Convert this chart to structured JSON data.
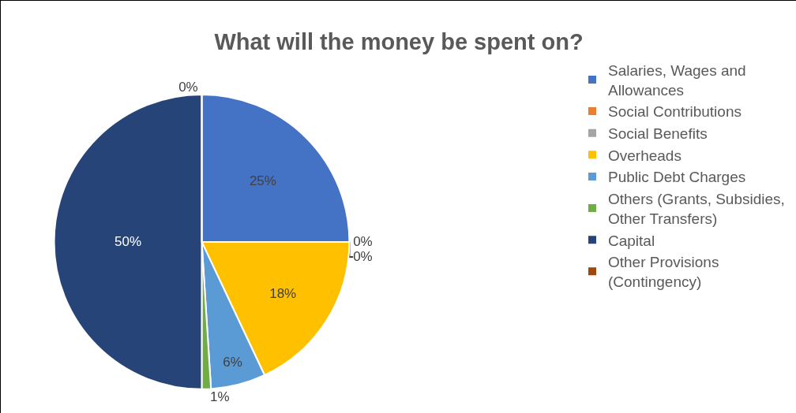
{
  "chart_data": {
    "type": "pie",
    "title": "What will the money be spent on?",
    "categories": [
      "Salaries, Wages and Allowances",
      "Social Contributions",
      "Social Benefits",
      "Overheads",
      "Public Debt Charges",
      "Others (Grants, Subsidies, Other Transfers)",
      "Capital",
      "Other Provisions (Contingency)"
    ],
    "values": [
      25,
      0,
      0,
      18,
      6,
      1,
      50,
      0
    ],
    "colors": [
      "#4472c4",
      "#ed7d31",
      "#a5a5a5",
      "#ffc000",
      "#5b9bd5",
      "#70ad47",
      "#264478",
      "#9e480e"
    ],
    "value_labels": [
      "25%",
      "0%",
      "0%",
      "18%",
      "6%",
      "1%",
      "50%",
      "0%"
    ],
    "legend": "right"
  }
}
